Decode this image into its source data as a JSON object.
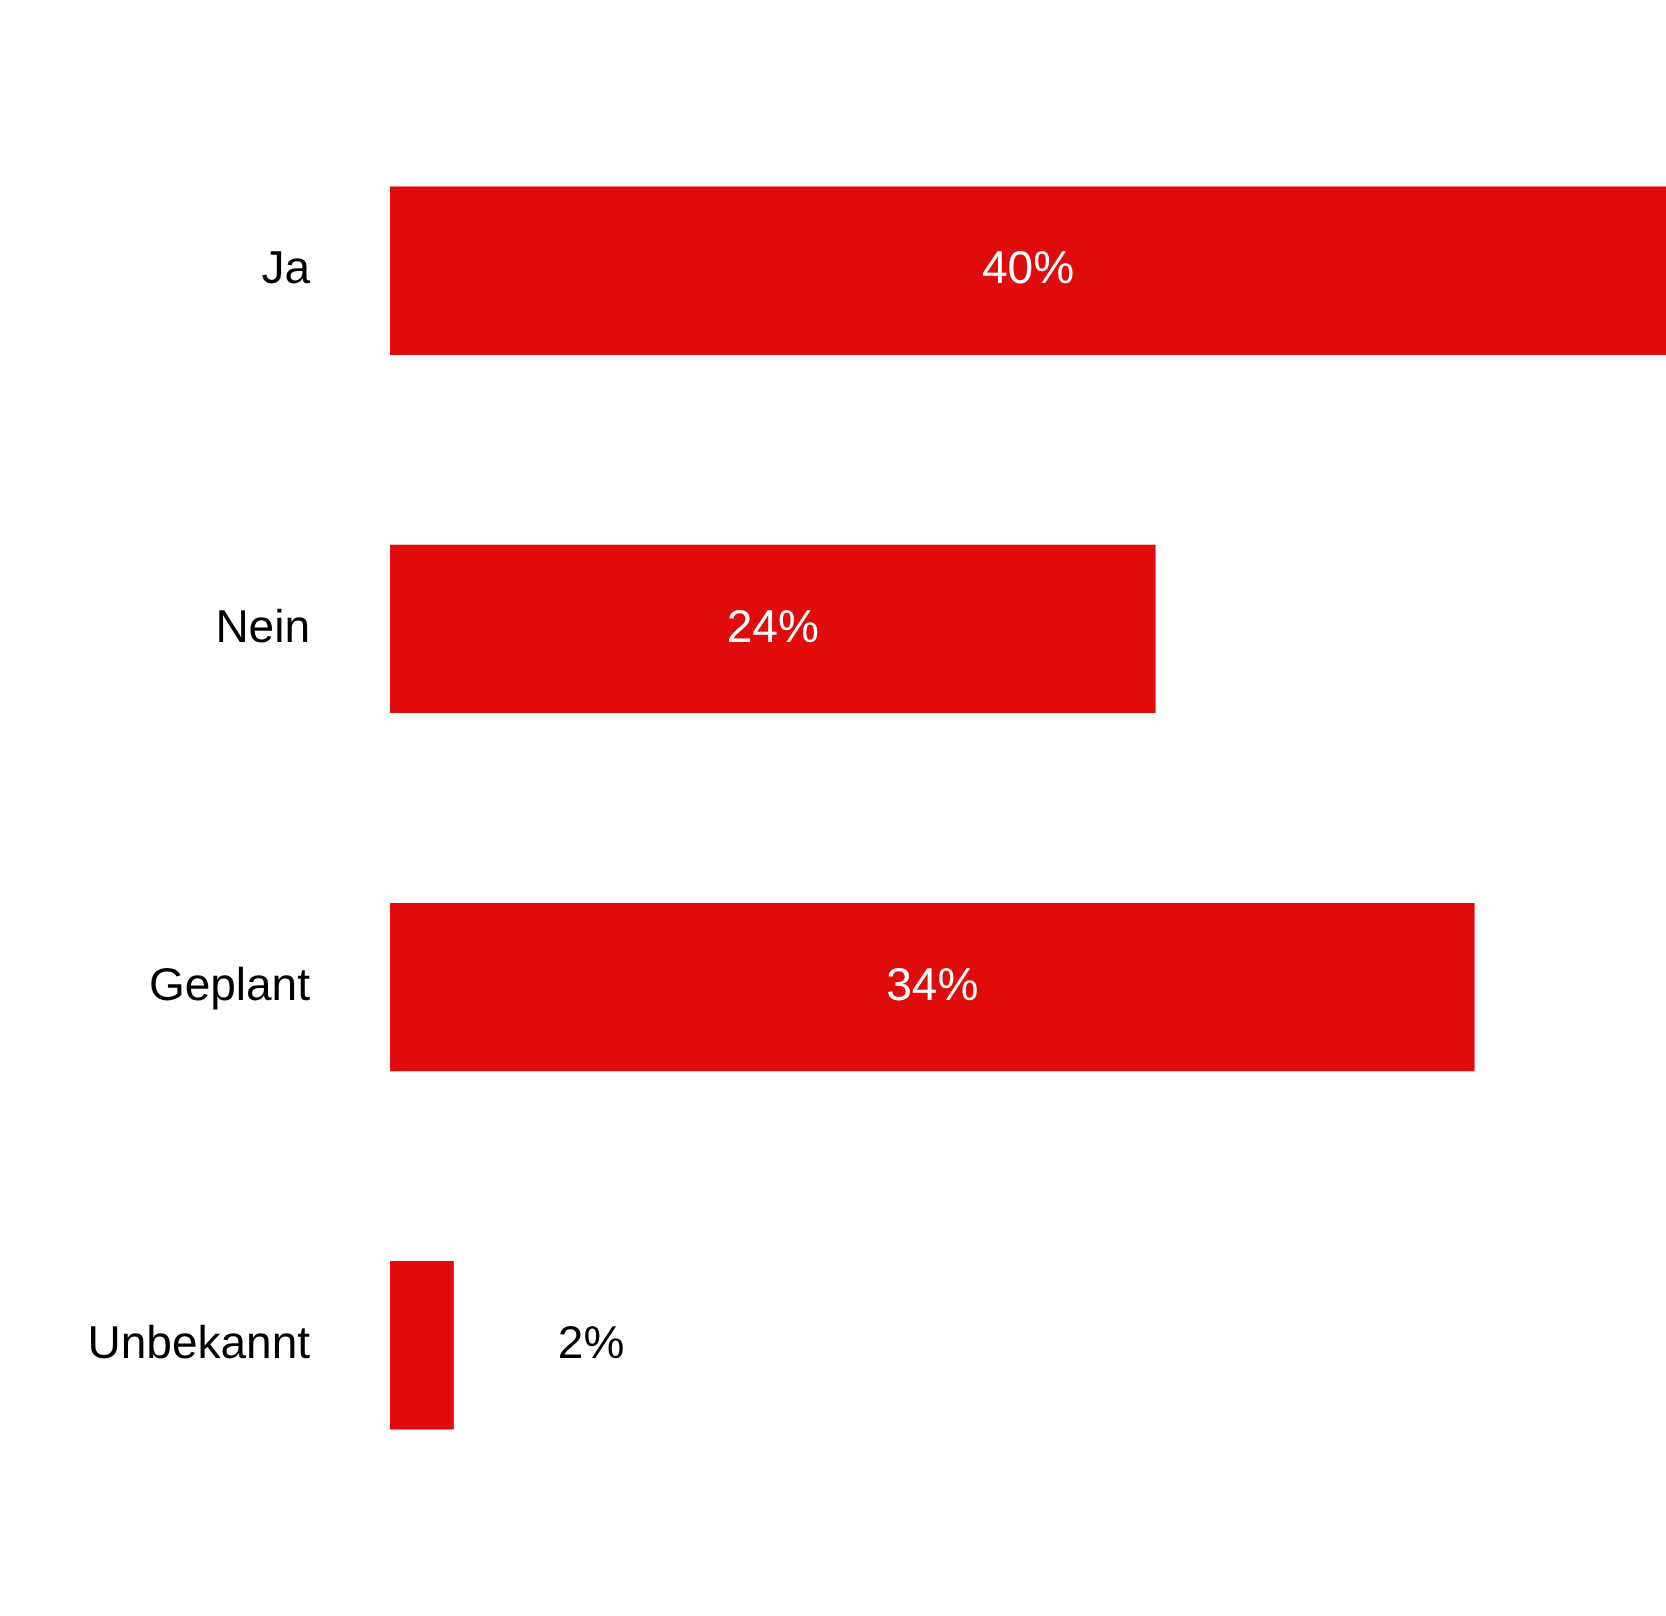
{
  "chart_data": {
    "type": "bar",
    "orientation": "horizontal",
    "categories": [
      "Ja",
      "Nein",
      "Geplant",
      "Unbekannt"
    ],
    "values": [
      40,
      24,
      34,
      2
    ],
    "color": "#e00b0b",
    "xlim": [
      0,
      40
    ],
    "data_labels": true,
    "value_labels": [
      "40%",
      "24%",
      "34%",
      "2%"
    ],
    "legend": false,
    "tick_labels": "y"
  }
}
